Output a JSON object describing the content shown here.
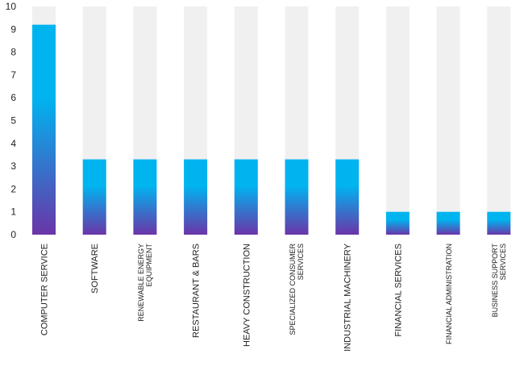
{
  "chart_data": {
    "type": "bar",
    "title": "",
    "xlabel": "",
    "ylabel": "",
    "ylim": [
      0,
      10
    ],
    "yticks": [
      0,
      1,
      2,
      3,
      4,
      5,
      6,
      7,
      8,
      9,
      10
    ],
    "grid": false,
    "legend": "none",
    "categories": [
      "COMPUTER SERVICE",
      "SOFTWARE",
      "RENEWABLE ENERGY EQUIPMENT",
      "RESTAURANT & BARS",
      "HEAVY CONSTRUCTION",
      "SPECIALIZED CONSUMER SERVICES",
      "INDUSTRIAL MACHINERY",
      "FINANCIAL SERVICES",
      "FINANCIAL ADMINISTRATION",
      "BUSINESS SUPPORT SERVICES"
    ],
    "values": [
      9.2,
      3.3,
      3.3,
      3.3,
      3.3,
      3.3,
      3.3,
      1.0,
      1.0,
      1.0
    ],
    "background_max": 10,
    "colors": {
      "bar_top": "#00b4f0",
      "bar_bottom": "#6a35a8",
      "track": "#f0f0f0"
    }
  }
}
